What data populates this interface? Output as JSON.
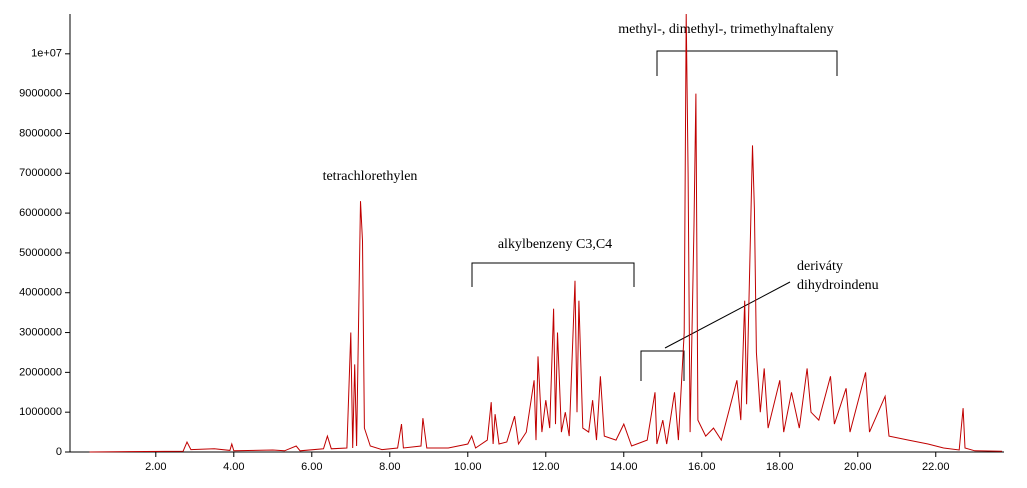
{
  "chart_data": {
    "type": "line",
    "annotations": [
      "tetrachlorethylen",
      "alkylbenzeny C3,C4",
      "methyl-, dimethyl-, trimethylnaftaleny",
      "deriváty",
      "dihydroindenu"
    ],
    "xlim": [
      -0.2,
      23.75
    ],
    "ylim": [
      0,
      11000000
    ],
    "xticks": [
      {
        "value": 2,
        "label": "2.00"
      },
      {
        "value": 4,
        "label": "4.00"
      },
      {
        "value": 6,
        "label": "6.00"
      },
      {
        "value": 8,
        "label": "8.00"
      },
      {
        "value": 10,
        "label": "10.00"
      },
      {
        "value": 12,
        "label": "12.00"
      },
      {
        "value": 14,
        "label": "14.00"
      },
      {
        "value": 16,
        "label": "16.00"
      },
      {
        "value": 18,
        "label": "18.00"
      },
      {
        "value": 20,
        "label": "20.00"
      },
      {
        "value": 22,
        "label": "22.00"
      }
    ],
    "yticks": [
      0,
      1000000,
      2000000,
      3000000,
      4000000,
      5000000,
      6000000,
      7000000,
      8000000,
      9000000,
      {
        "value": 10000000,
        "label": "1e+07"
      }
    ],
    "color": "#c00000",
    "x": [
      0.3,
      2.7,
      2.8,
      2.9,
      3.5,
      3.9,
      3.95,
      4.0,
      5.0,
      5.3,
      5.6,
      5.7,
      6.3,
      6.4,
      6.5,
      6.9,
      7.0,
      7.05,
      7.1,
      7.15,
      7.25,
      7.3,
      7.35,
      7.5,
      7.8,
      8.2,
      8.3,
      8.35,
      8.8,
      8.85,
      8.95,
      9.5,
      10.0,
      10.1,
      10.2,
      10.5,
      10.6,
      10.65,
      10.7,
      10.8,
      11.0,
      11.2,
      11.3,
      11.5,
      11.7,
      11.75,
      11.8,
      11.9,
      12.0,
      12.1,
      12.2,
      12.25,
      12.3,
      12.4,
      12.5,
      12.6,
      12.75,
      12.8,
      12.85,
      12.95,
      13.1,
      13.2,
      13.3,
      13.4,
      13.5,
      13.8,
      14.0,
      14.2,
      14.6,
      14.8,
      14.85,
      15.0,
      15.1,
      15.3,
      15.4,
      15.55,
      15.6,
      15.65,
      15.7,
      15.8,
      15.85,
      15.9,
      16.1,
      16.3,
      16.5,
      16.9,
      17.0,
      17.1,
      17.15,
      17.3,
      17.35,
      17.4,
      17.5,
      17.6,
      17.7,
      18.0,
      18.1,
      18.3,
      18.5,
      18.7,
      18.8,
      19.0,
      19.3,
      19.4,
      19.7,
      19.8,
      20.2,
      20.3,
      20.7,
      20.8,
      21.3,
      21.8,
      22.2,
      22.6,
      22.7,
      22.75,
      23.0,
      23.7
    ],
    "values": [
      0,
      20000,
      250000,
      60000,
      80000,
      40000,
      200000,
      30000,
      50000,
      30000,
      150000,
      30000,
      80000,
      400000,
      80000,
      100000,
      3000000,
      100000,
      2200000,
      150000,
      6300000,
      5300000,
      600000,
      150000,
      60000,
      100000,
      700000,
      100000,
      150000,
      850000,
      100000,
      100000,
      200000,
      400000,
      100000,
      300000,
      1250000,
      200000,
      950000,
      200000,
      250000,
      900000,
      200000,
      500000,
      1800000,
      300000,
      2400000,
      500000,
      1300000,
      600000,
      3600000,
      700000,
      3000000,
      500000,
      1000000,
      400000,
      4300000,
      1000000,
      3800000,
      600000,
      500000,
      1300000,
      300000,
      1900000,
      400000,
      300000,
      700000,
      150000,
      300000,
      1500000,
      200000,
      800000,
      200000,
      1500000,
      300000,
      3000000,
      11000000,
      7000000,
      500000,
      5700000,
      9000000,
      800000,
      400000,
      600000,
      300000,
      1800000,
      800000,
      3800000,
      1200000,
      7700000,
      6100000,
      2500000,
      1000000,
      2100000,
      600000,
      1800000,
      500000,
      1500000,
      600000,
      2100000,
      1000000,
      800000,
      1900000,
      700000,
      1600000,
      500000,
      2000000,
      500000,
      1400000,
      400000,
      300000,
      200000,
      100000,
      50000,
      1100000,
      100000,
      30000,
      20000
    ]
  }
}
